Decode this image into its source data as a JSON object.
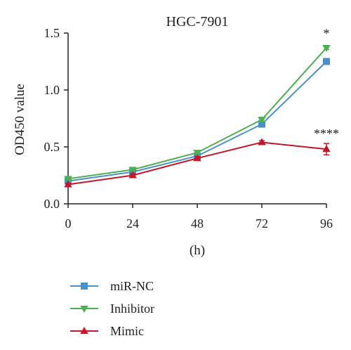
{
  "chart_data": {
    "type": "line",
    "title": "HGC-7901",
    "xlabel": "(h)",
    "ylabel": "OD450 value",
    "x": [
      0,
      24,
      48,
      72,
      96
    ],
    "xticks": [
      "0",
      "24",
      "48",
      "72",
      "96"
    ],
    "xlim": [
      0,
      96
    ],
    "yticks": [
      "0.0",
      "0.5",
      "1.0",
      "1.5"
    ],
    "ylim": [
      0,
      1.5
    ],
    "grid": false,
    "legend": "bottom",
    "series": [
      {
        "name": "miR-NC",
        "values": [
          0.2,
          0.28,
          0.42,
          0.7,
          1.25
        ],
        "err": [
          0.01,
          0.015,
          0.02,
          0.02,
          0.02
        ],
        "color": "#4a90c8",
        "marker": "square"
      },
      {
        "name": "Inhibitor",
        "values": [
          0.22,
          0.3,
          0.45,
          0.74,
          1.37
        ],
        "err": [
          0.01,
          0.01,
          0.015,
          0.015,
          0.015
        ],
        "color": "#4caf50",
        "marker": "triangle-down"
      },
      {
        "name": "Mimic",
        "values": [
          0.17,
          0.25,
          0.4,
          0.54,
          0.48
        ],
        "err": [
          0.01,
          0.015,
          0.015,
          0.015,
          0.05
        ],
        "color": "#c0182a",
        "marker": "triangle-up"
      }
    ],
    "annotations": [
      {
        "text": "*",
        "x": 96,
        "y": 1.46
      },
      {
        "text": "****",
        "x": 96,
        "y": 0.58
      }
    ]
  }
}
